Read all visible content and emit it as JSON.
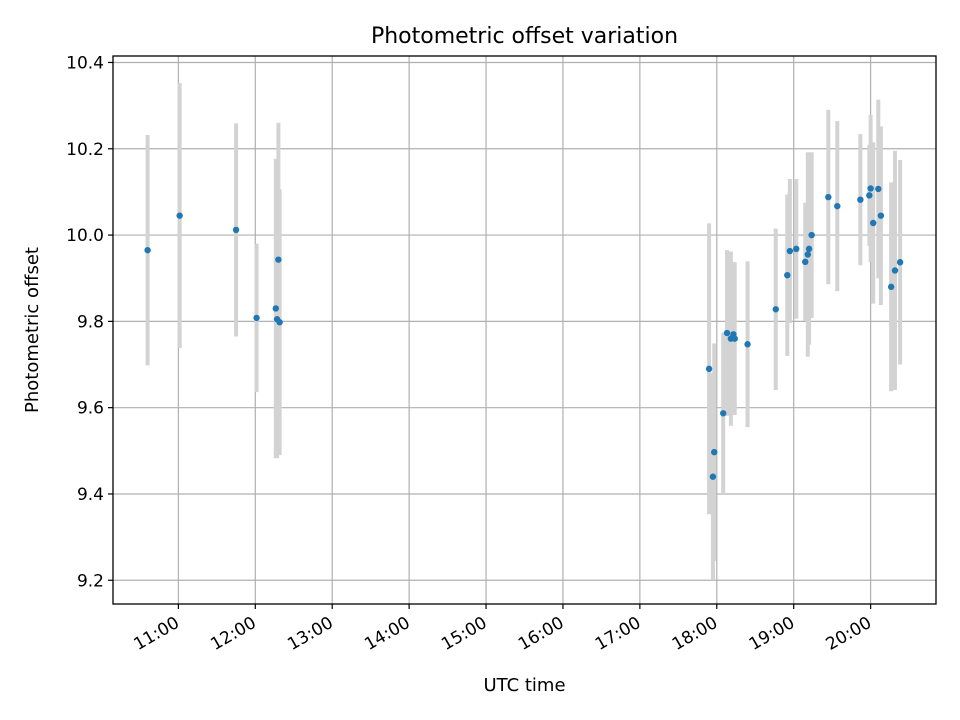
{
  "chart_data": {
    "type": "scatter",
    "title": "Photometric offset variation",
    "xlabel": "UTC time",
    "ylabel": "Photometric offset",
    "xlim": [
      "10:09",
      "20:51"
    ],
    "ylim": [
      9.145,
      10.415
    ],
    "grid": true,
    "x_ticks": [
      "11:00",
      "12:00",
      "13:00",
      "14:00",
      "15:00",
      "16:00",
      "17:00",
      "18:00",
      "19:00",
      "20:00"
    ],
    "y_ticks": [
      9.2,
      9.4,
      9.6,
      9.8,
      10.0,
      10.2,
      10.4
    ],
    "marker_color": "#1f77b4",
    "errorbar_color": "#d3d3d3",
    "points": [
      {
        "time": "10:36",
        "offset": 9.965,
        "err": 0.267
      },
      {
        "time": "11:01",
        "offset": 10.045,
        "err": 0.307
      },
      {
        "time": "11:45",
        "offset": 10.012,
        "err": 0.247
      },
      {
        "time": "12:01",
        "offset": 9.808,
        "err": 0.172
      },
      {
        "time": "12:16",
        "offset": 9.83,
        "err": 0.347
      },
      {
        "time": "12:17",
        "offset": 9.805,
        "err": 0.322
      },
      {
        "time": "12:18",
        "offset": 9.943,
        "err": 0.317
      },
      {
        "time": "12:19",
        "offset": 9.798,
        "err": 0.308
      },
      {
        "time": "17:54",
        "offset": 9.69,
        "err": 0.337
      },
      {
        "time": "17:57",
        "offset": 9.44,
        "err": 0.24
      },
      {
        "time": "17:58",
        "offset": 9.497,
        "err": 0.252
      },
      {
        "time": "18:05",
        "offset": 9.587,
        "err": 0.187
      },
      {
        "time": "18:08",
        "offset": 9.773,
        "err": 0.192
      },
      {
        "time": "18:11",
        "offset": 9.76,
        "err": 0.202
      },
      {
        "time": "18:13",
        "offset": 9.77,
        "err": 0.167
      },
      {
        "time": "18:14",
        "offset": 9.76,
        "err": 0.177
      },
      {
        "time": "18:24",
        "offset": 9.747,
        "err": 0.192
      },
      {
        "time": "18:46",
        "offset": 9.828,
        "err": 0.187
      },
      {
        "time": "18:55",
        "offset": 9.907,
        "err": 0.187
      },
      {
        "time": "18:57",
        "offset": 9.963,
        "err": 0.167
      },
      {
        "time": "19:02",
        "offset": 9.968,
        "err": 0.162
      },
      {
        "time": "19:09",
        "offset": 9.938,
        "err": 0.137
      },
      {
        "time": "19:11",
        "offset": 9.955,
        "err": 0.237
      },
      {
        "time": "19:12",
        "offset": 9.968,
        "err": 0.222
      },
      {
        "time": "19:14",
        "offset": 10.0,
        "err": 0.192
      },
      {
        "time": "19:27",
        "offset": 10.088,
        "err": 0.202
      },
      {
        "time": "19:34",
        "offset": 10.067,
        "err": 0.197
      },
      {
        "time": "19:52",
        "offset": 10.082,
        "err": 0.152
      },
      {
        "time": "19:59",
        "offset": 10.092,
        "err": 0.117
      },
      {
        "time": "20:00",
        "offset": 10.108,
        "err": 0.17
      },
      {
        "time": "20:02",
        "offset": 10.028,
        "err": 0.187
      },
      {
        "time": "20:06",
        "offset": 10.107,
        "err": 0.207
      },
      {
        "time": "20:08",
        "offset": 10.045,
        "err": 0.207
      },
      {
        "time": "20:16",
        "offset": 9.88,
        "err": 0.242
      },
      {
        "time": "20:19",
        "offset": 9.918,
        "err": 0.277
      },
      {
        "time": "20:23",
        "offset": 9.937,
        "err": 0.237
      }
    ]
  }
}
